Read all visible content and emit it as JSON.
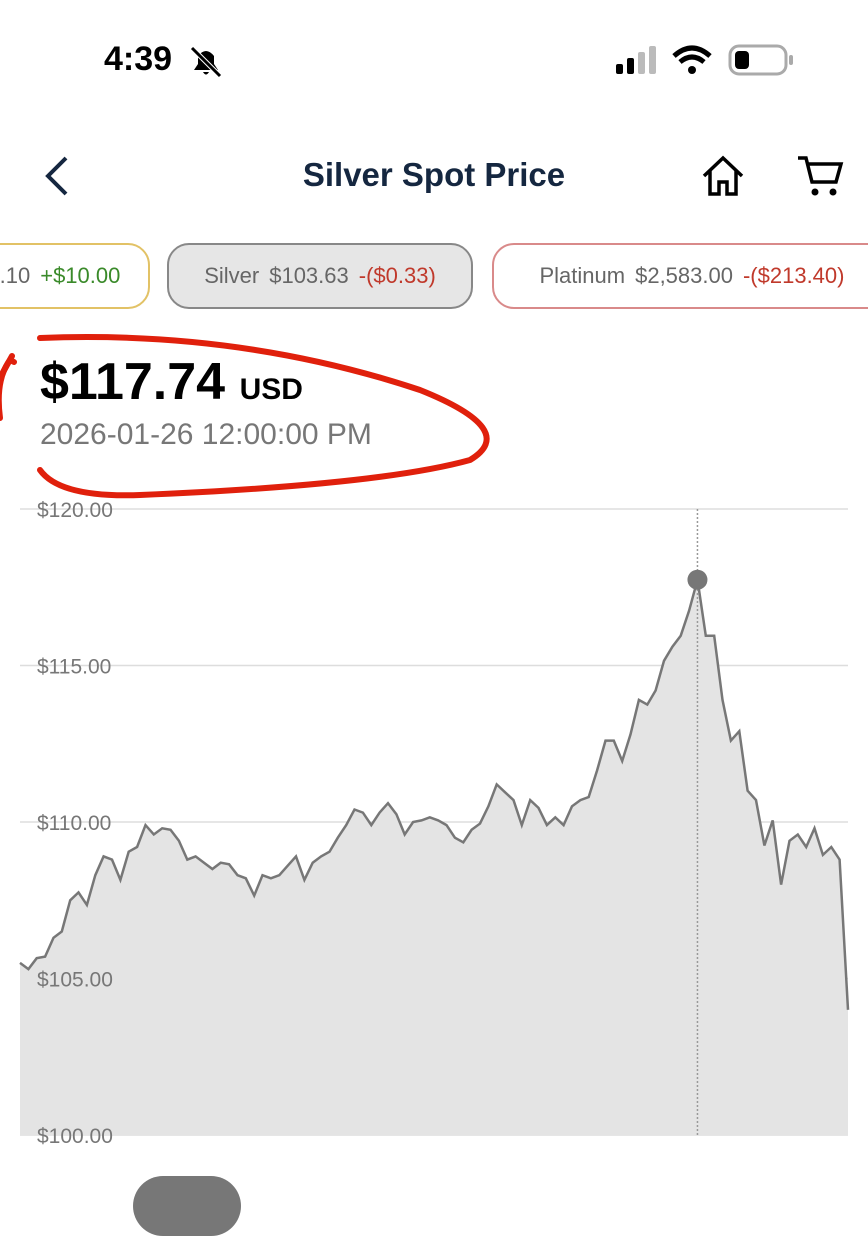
{
  "status_bar": {
    "time": "4:39"
  },
  "header": {
    "title": "Silver Spot Price"
  },
  "tickers": [
    {
      "price": ".10",
      "change": "+$10.00"
    },
    {
      "name": "Silver",
      "price": "$103.63",
      "change": "-($0.33)"
    },
    {
      "name": "Platinum",
      "price": "$2,583.00",
      "change": "-($213.40)"
    }
  ],
  "selected": {
    "price": "$117.74",
    "unit": "USD",
    "time": "2026-01-26 12:00:00 PM"
  },
  "chart_data": {
    "type": "area",
    "color": "#777777",
    "fill": "#e4e4e4",
    "grid": true,
    "ylim": [
      100,
      120
    ],
    "yticks": [
      {
        "value": 100,
        "label": "$100.00"
      },
      {
        "value": 105,
        "label": "$105.00"
      },
      {
        "value": 110,
        "label": "$110.00"
      },
      {
        "value": 115,
        "label": "$115.00"
      },
      {
        "value": 120,
        "label": "$120.00"
      }
    ],
    "values": [
      105.5,
      105.3,
      105.65,
      105.7,
      106.3,
      106.5,
      107.5,
      107.75,
      107.35,
      108.3,
      108.9,
      108.8,
      108.15,
      109.05,
      109.2,
      109.9,
      109.6,
      109.8,
      109.75,
      109.4,
      108.8,
      108.9,
      108.7,
      108.5,
      108.7,
      108.65,
      108.3,
      108.2,
      107.65,
      108.3,
      108.2,
      108.3,
      108.6,
      108.9,
      108.15,
      108.7,
      108.9,
      109.05,
      109.5,
      109.9,
      110.4,
      110.3,
      109.9,
      110.3,
      110.6,
      110.25,
      109.6,
      110.0,
      110.05,
      110.15,
      110.05,
      109.9,
      109.5,
      109.35,
      109.75,
      109.95,
      110.5,
      111.2,
      110.95,
      110.7,
      109.9,
      110.7,
      110.45,
      109.9,
      110.15,
      109.9,
      110.5,
      110.7,
      110.8,
      111.65,
      112.6,
      112.6,
      111.95,
      112.8,
      113.9,
      113.75,
      114.2,
      115.15,
      115.6,
      115.95,
      116.75,
      117.74,
      115.95,
      115.95,
      113.9,
      112.6,
      112.9,
      111.0,
      110.7,
      109.25,
      110.05,
      108.0,
      109.4,
      109.6,
      109.2,
      109.8,
      108.95,
      109.2,
      108.8,
      104.0
    ]
  }
}
